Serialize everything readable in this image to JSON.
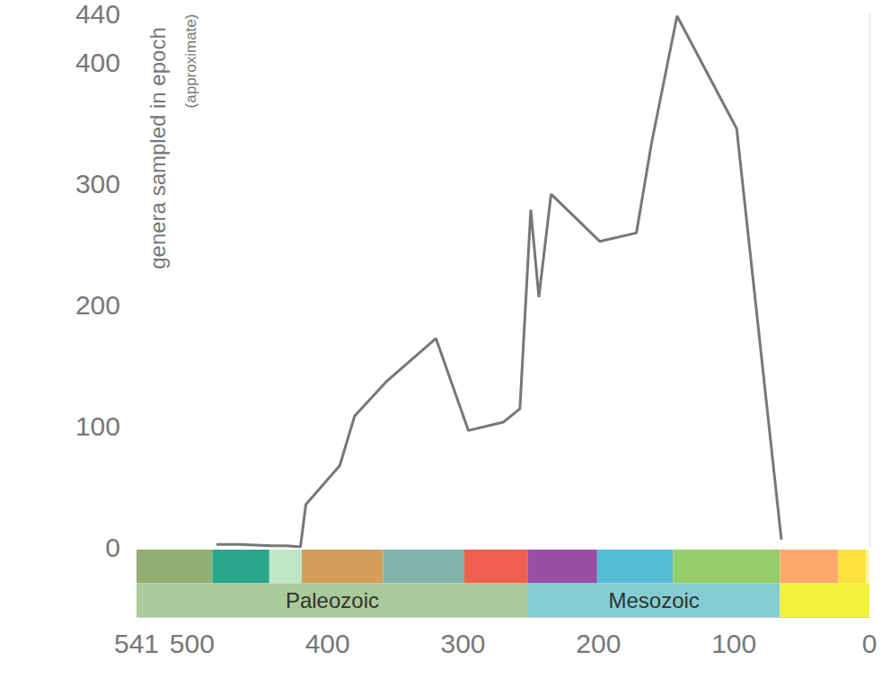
{
  "chart_data": {
    "type": "line",
    "y_label": "genera sampled in epoch",
    "y_label_note": "(approximate)",
    "x": [
      482,
      465,
      441,
      430,
      420,
      416,
      391,
      380,
      356,
      320,
      296,
      270,
      258,
      250,
      244,
      235,
      199,
      172,
      161,
      142,
      98,
      65
    ],
    "values": [
      2,
      2,
      1,
      1,
      0,
      35,
      67,
      108,
      137,
      172,
      96,
      103,
      114,
      278,
      206,
      291,
      252,
      259,
      332,
      438,
      345,
      6
    ],
    "color": "#777777",
    "xlim": [
      541,
      0
    ],
    "xticks": [
      0,
      100,
      200,
      300,
      400,
      500
    ],
    "ylim": [
      0,
      440
    ],
    "yticks": [
      0,
      100,
      200,
      300,
      400
    ],
    "grid": false,
    "periods": [
      {
        "start": 541,
        "end": 485,
        "color": "#93ae72"
      },
      {
        "start": 485,
        "end": 443,
        "color": "#2aa68a"
      },
      {
        "start": 443,
        "end": 419,
        "color": "#bfe6c6"
      },
      {
        "start": 419,
        "end": 359,
        "color": "#d39f5a"
      },
      {
        "start": 359,
        "end": 299,
        "color": "#80b3ab"
      },
      {
        "start": 299,
        "end": 252,
        "color": "#f1604f"
      },
      {
        "start": 252,
        "end": 201,
        "color": "#984ea3"
      },
      {
        "start": 201,
        "end": 145,
        "color": "#56bdd7"
      },
      {
        "start": 145,
        "end": 66,
        "color": "#95cd6a"
      },
      {
        "start": 66,
        "end": 23,
        "color": "#fdaa6b"
      },
      {
        "start": 23,
        "end": 2.6,
        "color": "#ffe13e"
      },
      {
        "start": 2.6,
        "end": 0,
        "color": "#fff6a0"
      }
    ],
    "eras": [
      {
        "name": "Paleozoic",
        "start": 541,
        "end": 252,
        "color": "#a9ca9a"
      },
      {
        "name": "Mesozoic",
        "start": 252,
        "end": 66,
        "color": "#82ced2"
      },
      {
        "start": 66,
        "end": 0,
        "color": "#f3f33f"
      }
    ]
  }
}
